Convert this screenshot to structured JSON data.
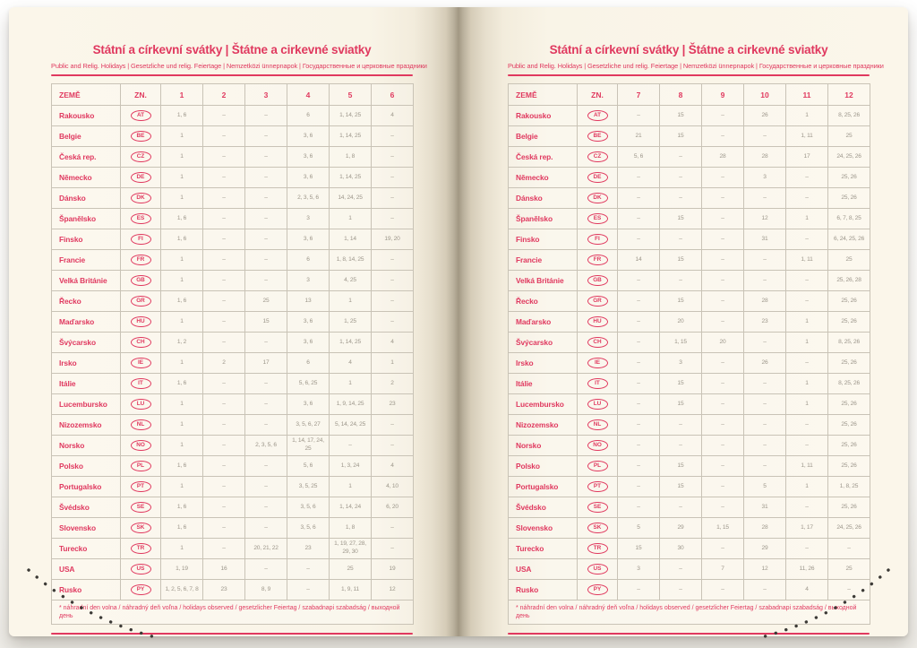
{
  "book": {
    "title": "Státní a církevní svátky | Štátne a cirkevné sviatky",
    "subtitle": "Public and Relig. Holidays | Gesetzliche und relig. Feiertage | Nemzetközi ünnepnapok | Государственные и церковные праздники",
    "footnote": "* náhradní den volna / náhradný deň voľna / holidays observed / gesetzlicher Feiertag / szabadnapi szabadság / выходной день",
    "col_country": "ZEMĚ",
    "col_code": "ZN.",
    "left_months": [
      "1",
      "2",
      "3",
      "4",
      "5",
      "6"
    ],
    "right_months": [
      "7",
      "8",
      "9",
      "10",
      "11",
      "12"
    ],
    "rows": [
      {
        "name": "Rakousko",
        "code": "AT",
        "left": [
          "1, 6",
          "–",
          "–",
          "6",
          "1, 14, 25",
          "4"
        ],
        "right": [
          "–",
          "15",
          "–",
          "26",
          "1",
          "8, 25, 26"
        ]
      },
      {
        "name": "Belgie",
        "code": "BE",
        "left": [
          "1",
          "–",
          "–",
          "3, 6",
          "1, 14, 25",
          "–"
        ],
        "right": [
          "21",
          "15",
          "–",
          "–",
          "1, 11",
          "25"
        ]
      },
      {
        "name": "Česká rep.",
        "code": "CZ",
        "left": [
          "1",
          "–",
          "–",
          "3, 6",
          "1, 8",
          "–"
        ],
        "right": [
          "5, 6",
          "–",
          "28",
          "28",
          "17",
          "24, 25, 26"
        ]
      },
      {
        "name": "Německo",
        "code": "DE",
        "left": [
          "1",
          "–",
          "–",
          "3, 6",
          "1, 14, 25",
          "–"
        ],
        "right": [
          "–",
          "–",
          "–",
          "3",
          "–",
          "25, 26"
        ]
      },
      {
        "name": "Dánsko",
        "code": "DK",
        "left": [
          "1",
          "–",
          "–",
          "2, 3, 5, 6",
          "14, 24, 25",
          "–"
        ],
        "right": [
          "–",
          "–",
          "–",
          "–",
          "–",
          "25, 26"
        ]
      },
      {
        "name": "Španělsko",
        "code": "ES",
        "left": [
          "1, 6",
          "–",
          "–",
          "3",
          "1",
          "–"
        ],
        "right": [
          "–",
          "15",
          "–",
          "12",
          "1",
          "6, 7, 8, 25"
        ]
      },
      {
        "name": "Finsko",
        "code": "FI",
        "left": [
          "1, 6",
          "–",
          "–",
          "3, 6",
          "1, 14",
          "19, 20"
        ],
        "right": [
          "–",
          "–",
          "–",
          "31",
          "–",
          "6, 24, 25, 26"
        ]
      },
      {
        "name": "Francie",
        "code": "FR",
        "left": [
          "1",
          "–",
          "–",
          "6",
          "1, 8, 14, 25",
          "–"
        ],
        "right": [
          "14",
          "15",
          "–",
          "–",
          "1, 11",
          "25"
        ]
      },
      {
        "name": "Velká Británie",
        "code": "GB",
        "left": [
          "1",
          "–",
          "–",
          "3",
          "4, 25",
          "–"
        ],
        "right": [
          "–",
          "–",
          "–",
          "–",
          "–",
          "25, 26, 28"
        ]
      },
      {
        "name": "Řecko",
        "code": "GR",
        "left": [
          "1, 6",
          "–",
          "25",
          "13",
          "1",
          "–"
        ],
        "right": [
          "–",
          "15",
          "–",
          "28",
          "–",
          "25, 26"
        ]
      },
      {
        "name": "Maďarsko",
        "code": "HU",
        "left": [
          "1",
          "–",
          "15",
          "3, 6",
          "1, 25",
          "–"
        ],
        "right": [
          "–",
          "20",
          "–",
          "23",
          "1",
          "25, 26"
        ]
      },
      {
        "name": "Švýcarsko",
        "code": "CH",
        "left": [
          "1, 2",
          "–",
          "–",
          "3, 6",
          "1, 14, 25",
          "4"
        ],
        "right": [
          "–",
          "1, 15",
          "20",
          "–",
          "1",
          "8, 25, 26"
        ]
      },
      {
        "name": "Irsko",
        "code": "IE",
        "left": [
          "1",
          "2",
          "17",
          "6",
          "4",
          "1"
        ],
        "right": [
          "–",
          "3",
          "–",
          "26",
          "–",
          "25, 26"
        ]
      },
      {
        "name": "Itálie",
        "code": "IT",
        "left": [
          "1, 6",
          "–",
          "–",
          "5, 6, 25",
          "1",
          "2"
        ],
        "right": [
          "–",
          "15",
          "–",
          "–",
          "1",
          "8, 25, 26"
        ]
      },
      {
        "name": "Lucembursko",
        "code": "LU",
        "left": [
          "1",
          "–",
          "–",
          "3, 6",
          "1, 9, 14, 25",
          "23"
        ],
        "right": [
          "–",
          "15",
          "–",
          "–",
          "1",
          "25, 26"
        ]
      },
      {
        "name": "Nizozemsko",
        "code": "NL",
        "left": [
          "1",
          "–",
          "–",
          "3, 5, 6, 27",
          "5, 14, 24, 25",
          "–"
        ],
        "right": [
          "–",
          "–",
          "–",
          "–",
          "–",
          "25, 26"
        ]
      },
      {
        "name": "Norsko",
        "code": "NO",
        "left": [
          "1",
          "–",
          "2, 3, 5, 6",
          "1, 14, 17, 24, 25",
          "–",
          "–"
        ],
        "right": [
          "–",
          "–",
          "–",
          "–",
          "–",
          "25, 26"
        ]
      },
      {
        "name": "Polsko",
        "code": "PL",
        "left": [
          "1, 6",
          "–",
          "–",
          "5, 6",
          "1, 3, 24",
          "4"
        ],
        "right": [
          "–",
          "15",
          "–",
          "–",
          "1, 11",
          "25, 26"
        ]
      },
      {
        "name": "Portugalsko",
        "code": "PT",
        "left": [
          "1",
          "–",
          "–",
          "3, 5, 25",
          "1",
          "4, 10"
        ],
        "right": [
          "–",
          "15",
          "–",
          "5",
          "1",
          "1, 8, 25"
        ]
      },
      {
        "name": "Švédsko",
        "code": "SE",
        "left": [
          "1, 6",
          "–",
          "–",
          "3, 5, 6",
          "1, 14, 24",
          "6, 20"
        ],
        "right": [
          "–",
          "–",
          "–",
          "31",
          "–",
          "25, 26"
        ]
      },
      {
        "name": "Slovensko",
        "code": "SK",
        "left": [
          "1, 6",
          "–",
          "–",
          "3, 5, 6",
          "1, 8",
          "–"
        ],
        "right": [
          "5",
          "29",
          "1, 15",
          "28",
          "1, 17",
          "24, 25, 26"
        ]
      },
      {
        "name": "Turecko",
        "code": "TR",
        "left": [
          "1",
          "–",
          "20, 21, 22",
          "23",
          "1, 19, 27, 28, 29, 30",
          "–"
        ],
        "right": [
          "15",
          "30",
          "–",
          "29",
          "–",
          "–"
        ]
      },
      {
        "name": "USA",
        "code": "US",
        "left": [
          "1, 19",
          "16",
          "–",
          "–",
          "25",
          "19"
        ],
        "right": [
          "3",
          "–",
          "7",
          "12",
          "11, 26",
          "25"
        ]
      },
      {
        "name": "Rusko",
        "code": "PY",
        "left": [
          "1, 2, 5, 6, 7, 8",
          "23",
          "8, 9",
          "–",
          "1, 9, 11",
          "12"
        ],
        "right": [
          "–",
          "–",
          "–",
          "–",
          "4",
          "–"
        ]
      }
    ],
    "colors": {
      "accent": "#e0395f",
      "page": "#f9f4e7",
      "value_text": "#9c968a",
      "border": "#c9c3b6",
      "stitch": "#3c3a36"
    }
  }
}
